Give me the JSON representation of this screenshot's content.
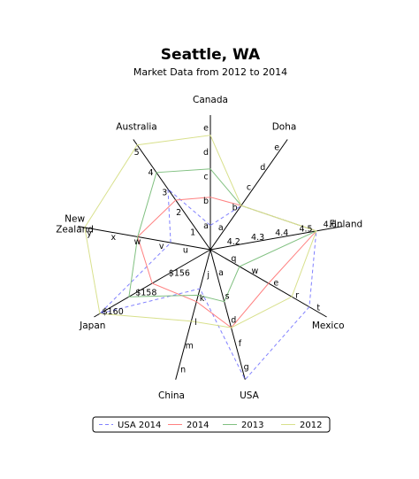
{
  "chart_data": {
    "type": "radar",
    "title": "Seattle, WA",
    "subtitle": "Market Data from 2012 to 2014",
    "axes": [
      {
        "name": "Canada",
        "angle": 90,
        "ticks": [
          "a",
          "b",
          "c",
          "d",
          "e"
        ]
      },
      {
        "name": "Doha",
        "angle": 55,
        "ticks": [
          "a",
          "b",
          "c",
          "d",
          "e"
        ]
      },
      {
        "name": "Finland",
        "angle": 10,
        "ticks": [
          "4.2",
          "4.3",
          "4.4",
          "4.5",
          "4.6"
        ]
      },
      {
        "name": "Mexico",
        "angle": -30,
        "ticks": [
          "q",
          "w",
          "e",
          "r",
          "t"
        ]
      },
      {
        "name": "USA",
        "angle": -75,
        "ticks": [
          "a",
          "s",
          "d",
          "f",
          "g"
        ]
      },
      {
        "name": "China",
        "angle": -105,
        "ticks": [
          "j",
          "k",
          "l",
          "m",
          "n"
        ]
      },
      {
        "name": "Japan",
        "angle": -150,
        "ticks": [
          "$156",
          "$158",
          "$160"
        ]
      },
      {
        "name": "New\nZealand",
        "angle": 170,
        "ticks": [
          "u",
          "v",
          "w",
          "x",
          "y"
        ]
      },
      {
        "name": "Australia",
        "angle": 125,
        "ticks": [
          "1",
          "2",
          "3",
          "4",
          "5"
        ]
      }
    ],
    "legend_position": "bottom",
    "series": [
      {
        "name": "USA 2014",
        "color": "#8080ff",
        "dash": true,
        "values": [
          0.18,
          0.4,
          0.8,
          0.85,
          1.0,
          0.3,
          0.95,
          0.3,
          0.55
        ]
      },
      {
        "name": "2014",
        "color": "#ff8080",
        "dash": false,
        "values": [
          0.39,
          0.4,
          0.8,
          0.5,
          0.6,
          0.4,
          0.5,
          0.55,
          0.45
        ]
      },
      {
        "name": "2013",
        "color": "#80c080",
        "dash": false,
        "values": [
          0.6,
          0.4,
          0.8,
          0.25,
          0.4,
          0.35,
          0.7,
          0.55,
          0.7
        ]
      },
      {
        "name": "2012",
        "color": "#d8e08c",
        "dash": false,
        "values": [
          0.85,
          0.4,
          0.8,
          0.7,
          0.6,
          0.55,
          0.95,
          0.95,
          0.95
        ]
      }
    ]
  }
}
